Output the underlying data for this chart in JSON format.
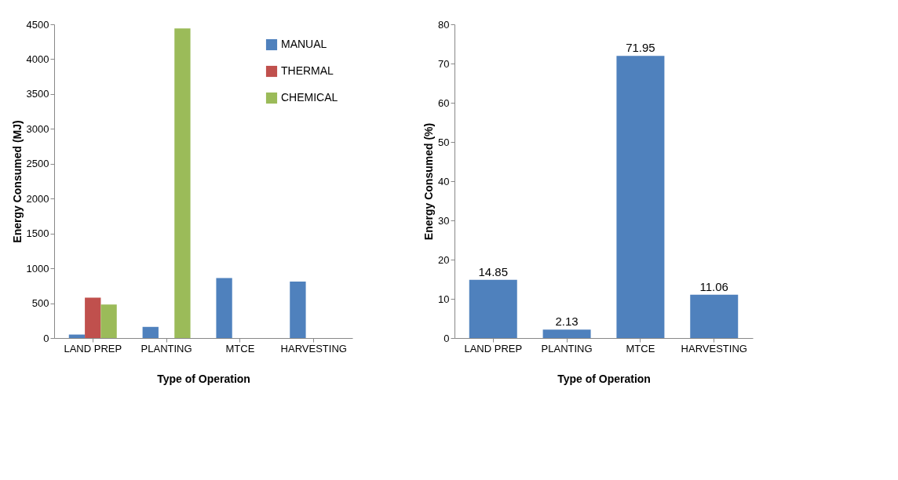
{
  "chart_data": [
    {
      "type": "bar",
      "xlabel": "Type of Operation",
      "ylabel": "Energy Consumed (MJ)",
      "categories": [
        "LAND PREP",
        "PLANTING",
        "MTCE",
        "HARVESTING"
      ],
      "series": [
        {
          "name": "MANUAL",
          "color": "#4f81bd",
          "values": [
            50,
            160,
            860,
            810
          ]
        },
        {
          "name": "THERMAL",
          "color": "#c0504d",
          "values": [
            580,
            0,
            0,
            0
          ]
        },
        {
          "name": "CHEMICAL",
          "color": "#9bbb59",
          "values": [
            480,
            4440,
            0,
            0
          ]
        }
      ],
      "ylim": [
        0,
        4500
      ],
      "yticks": [
        0,
        500,
        1000,
        1500,
        2000,
        2500,
        3000,
        3500,
        4000,
        4500
      ],
      "grid": false,
      "legend": "top right"
    },
    {
      "type": "bar",
      "xlabel": "Type of Operation",
      "ylabel": "Energy Consumed (%)",
      "categories": [
        "LAND PREP",
        "PLANTING",
        "MTCE",
        "HARVESTING"
      ],
      "values": [
        14.85,
        2.13,
        71.95,
        11.06
      ],
      "color": "#4f81bd",
      "data_labels": true,
      "ylim": [
        0,
        80
      ],
      "yticks": [
        0,
        10,
        20,
        30,
        40,
        50,
        60,
        70,
        80
      ],
      "grid": false
    }
  ]
}
